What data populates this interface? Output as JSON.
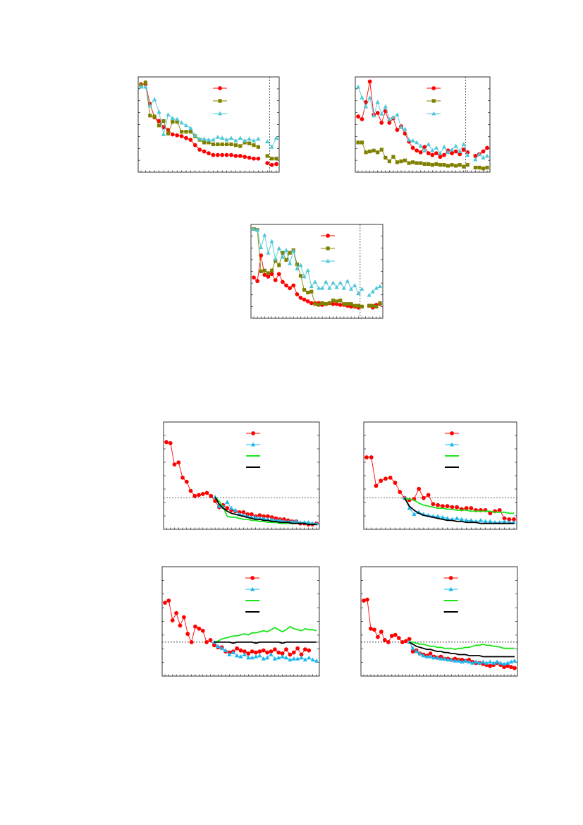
{
  "colors": {
    "red": "#ff0000",
    "olive": "#808000",
    "cyan": "#4cc8d8",
    "blue": "#19b8f0",
    "green": "#19e619",
    "black": "#000000"
  },
  "chart_data": [
    {
      "id": "top-1",
      "type": "line",
      "ylim": [
        0,
        100
      ],
      "split_at": 31,
      "grid": false,
      "legend": "top-right",
      "series": [
        {
          "marker": "circle",
          "color": "red",
          "values": [
            95,
            95,
            73,
            58,
            54,
            47,
            44,
            39,
            38,
            37,
            35,
            33,
            27,
            22,
            20,
            18,
            16,
            16,
            16,
            16,
            16,
            15,
            15,
            14,
            13,
            12,
            12,
            null,
            7,
            5,
            6
          ]
        },
        {
          "marker": "square",
          "color": "olive",
          "values": [
            94,
            97,
            60,
            59,
            49,
            54,
            40,
            53,
            53,
            42,
            42,
            42,
            37,
            33,
            30,
            30,
            28,
            28,
            28,
            28,
            28,
            27,
            26,
            30,
            29,
            27,
            25,
            null,
            15,
            12,
            12
          ]
        },
        {
          "marker": "triangle",
          "color": "cyan",
          "values": [
            92,
            92,
            71,
            78,
            64,
            39,
            61,
            57,
            56,
            52,
            49,
            46,
            38,
            34,
            34,
            33,
            33,
            36,
            35,
            33,
            35,
            32,
            35,
            32,
            34,
            32,
            34,
            null,
            31,
            25,
            35
          ]
        }
      ]
    },
    {
      "id": "top-2",
      "type": "line",
      "ylim": [
        0,
        100
      ],
      "split_at": 30,
      "grid": false,
      "legend": "top-right",
      "series": [
        {
          "marker": "circle",
          "color": "red",
          "values": [
            59,
            56,
            75,
            98,
            61,
            63,
            52,
            65,
            52,
            57,
            44,
            48,
            40,
            31,
            24,
            21,
            19,
            25,
            18,
            16,
            18,
            14,
            16,
            21,
            18,
            20,
            17,
            22,
            19,
            null,
            15,
            17,
            20,
            24
          ]
        },
        {
          "marker": "square",
          "color": "olive",
          "values": [
            30,
            30,
            19,
            20,
            21,
            19,
            22,
            13,
            9,
            14,
            8,
            9,
            10,
            7,
            8,
            7,
            7,
            6,
            6,
            5,
            6,
            5,
            5,
            4,
            5,
            4,
            5,
            3,
            5,
            null,
            2,
            2,
            1,
            2
          ]
        },
        {
          "marker": "triangle",
          "color": "cyan",
          "values": [
            92,
            80,
            70,
            80,
            60,
            75,
            62,
            70,
            56,
            58,
            61,
            47,
            45,
            33,
            32,
            30,
            26,
            21,
            28,
            21,
            24,
            18,
            25,
            19,
            22,
            26,
            20,
            28,
            16,
            null,
            11,
            17,
            13,
            15
          ]
        }
      ]
    },
    {
      "id": "top-3",
      "type": "line",
      "ylim": [
        0,
        100
      ],
      "split_at": 32,
      "grid": false,
      "legend": "top-right",
      "series": [
        {
          "marker": "circle",
          "color": "red",
          "values": [
            43,
            39,
            68,
            46,
            44,
            47,
            40,
            47,
            38,
            34,
            31,
            34,
            24,
            20,
            18,
            16,
            14,
            14,
            14,
            12,
            13,
            14,
            13,
            13,
            12,
            12,
            11,
            10,
            10,
            9,
            10,
            null,
            11,
            9,
            12,
            13
          ]
        },
        {
          "marker": "square",
          "color": "olive",
          "values": [
            98,
            97,
            50,
            51,
            48,
            51,
            62,
            57,
            71,
            63,
            71,
            74,
            58,
            45,
            29,
            26,
            27,
            13,
            12,
            14,
            13,
            14,
            17,
            16,
            17,
            13,
            13,
            13,
            11,
            11,
            10,
            null,
            11,
            11,
            10,
            14
          ]
        },
        {
          "marker": "triangle",
          "color": "cyan",
          "values": [
            98,
            97,
            77,
            91,
            71,
            84,
            64,
            76,
            66,
            74,
            59,
            73,
            53,
            57,
            44,
            51,
            33,
            38,
            31,
            31,
            38,
            31,
            37,
            32,
            37,
            31,
            39,
            30,
            34,
            25,
            30,
            null,
            23,
            27,
            31,
            33
          ]
        }
      ]
    },
    {
      "id": "bot-1",
      "type": "line",
      "ylim": [
        0,
        100
      ],
      "hline": 28,
      "grid": false,
      "legend": "top-right",
      "series": [
        {
          "marker": "circle",
          "color": "red",
          "x0": 0,
          "values": [
            83,
            82,
            61,
            63,
            48,
            44,
            35,
            30,
            31,
            32,
            33,
            30,
            25,
            19,
            21,
            18,
            16,
            15,
            14,
            14,
            12,
            12,
            10,
            11,
            10,
            10,
            9,
            8,
            7,
            7,
            6,
            5,
            5,
            3,
            3,
            2,
            2,
            3
          ]
        },
        {
          "marker": "triangle",
          "color": "blue",
          "x0": 12,
          "values": [
            29,
            20,
            19,
            24,
            18,
            16,
            12,
            11,
            10,
            9,
            9,
            8,
            8,
            7,
            7,
            6,
            6,
            5,
            5,
            5,
            5,
            4,
            4,
            4,
            3,
            3
          ]
        },
        {
          "marker": "none",
          "color": "green",
          "x0": 12,
          "values": [
            29,
            25,
            19,
            10,
            9,
            9,
            8,
            7,
            7,
            6,
            6,
            5,
            5,
            4,
            4,
            4,
            3,
            3,
            3,
            3,
            3,
            3,
            3,
            2,
            2,
            2
          ]
        },
        {
          "marker": "none",
          "color": "black",
          "x0": 12,
          "values": [
            29,
            22,
            18,
            15,
            13,
            12,
            11,
            10,
            9,
            8,
            7,
            7,
            6,
            6,
            5,
            5,
            4,
            4,
            4,
            3,
            3,
            3,
            3,
            2,
            2,
            2
          ]
        }
      ]
    },
    {
      "id": "bot-2",
      "type": "line",
      "ylim": [
        0,
        100
      ],
      "hline": 28,
      "grid": false,
      "legend": "top-right",
      "series": [
        {
          "marker": "circle",
          "color": "red",
          "x0": 0,
          "values": [
            68,
            68,
            40,
            45,
            47,
            48,
            43,
            34,
            28,
            26,
            27,
            37,
            28,
            31,
            22,
            21,
            20,
            20,
            19,
            19,
            17,
            18,
            18,
            16,
            16,
            16,
            13,
            15,
            16,
            8,
            7,
            7
          ]
        },
        {
          "marker": "triangle",
          "color": "blue",
          "x0": 8,
          "values": [
            28,
            18,
            12,
            14,
            12,
            11,
            10,
            10,
            9,
            8,
            7,
            8,
            7,
            6,
            6,
            5,
            6,
            5,
            5,
            4,
            4,
            5,
            4,
            4
          ]
        },
        {
          "marker": "none",
          "color": "green",
          "x0": 8,
          "values": [
            28,
            27,
            26,
            23,
            21,
            20,
            19,
            18,
            18,
            17,
            17,
            16,
            16,
            16,
            15,
            15,
            15,
            15,
            15,
            14,
            14,
            14,
            13,
            13
          ]
        },
        {
          "marker": "none",
          "color": "black",
          "x0": 8,
          "values": [
            28,
            20,
            16,
            13,
            11,
            10,
            9,
            8,
            7,
            6,
            6,
            5,
            5,
            4,
            4,
            4,
            3,
            3,
            3,
            3,
            3,
            3,
            3,
            3
          ]
        }
      ]
    },
    {
      "id": "bot-3",
      "type": "line",
      "ylim": [
        0,
        100
      ],
      "hline": 30,
      "grid": false,
      "legend": "top-right",
      "series": [
        {
          "marker": "circle",
          "color": "red",
          "x0": 0,
          "values": [
            68,
            70,
            51,
            58,
            46,
            54,
            38,
            30,
            45,
            43,
            41,
            30,
            32,
            27,
            25,
            25,
            21,
            20,
            21,
            24,
            22,
            21,
            19,
            21,
            20,
            21,
            22,
            20,
            21,
            23,
            20,
            19,
            23,
            18,
            20,
            24,
            18,
            23,
            22
          ]
        },
        {
          "marker": "triangle",
          "color": "blue",
          "x0": 13,
          "values": [
            30,
            26,
            24,
            22,
            18,
            20,
            17,
            16,
            18,
            15,
            15,
            16,
            17,
            14,
            15,
            18,
            14,
            15,
            16,
            15,
            13,
            14,
            14,
            15,
            13,
            15,
            13,
            12
          ]
        },
        {
          "marker": "none",
          "color": "green",
          "x0": 13,
          "values": [
            30,
            31,
            33,
            34,
            35,
            36,
            36,
            37,
            38,
            37,
            39,
            39,
            40,
            41,
            40,
            42,
            44,
            42,
            40,
            42,
            45,
            43,
            42,
            41,
            43,
            42,
            42,
            41
          ]
        },
        {
          "marker": "none",
          "color": "black",
          "x0": 13,
          "values": [
            30,
            30,
            30,
            30,
            30,
            29,
            30,
            30,
            30,
            30,
            30,
            29,
            30,
            30,
            30,
            30,
            30,
            30,
            29,
            30,
            30,
            30,
            30,
            30,
            30,
            30,
            30,
            30
          ]
        }
      ]
    },
    {
      "id": "bot-4",
      "type": "line",
      "ylim": [
        0,
        100
      ],
      "hline": 30,
      "grid": false,
      "legend": "top-right",
      "series": [
        {
          "marker": "circle",
          "color": "red",
          "x0": 0,
          "values": [
            70,
            71,
            43,
            42,
            35,
            40,
            32,
            30,
            36,
            37,
            34,
            30,
            31,
            33,
            21,
            22,
            19,
            18,
            17,
            19,
            16,
            15,
            16,
            14,
            14,
            13,
            14,
            13,
            13,
            12,
            13,
            11,
            10,
            10,
            9,
            8,
            7,
            8,
            10,
            8,
            6,
            7,
            6,
            5
          ]
        },
        {
          "marker": "triangle",
          "color": "blue",
          "x0": 13,
          "values": [
            30,
            24,
            21,
            19,
            17,
            16,
            16,
            15,
            15,
            14,
            14,
            13,
            13,
            12,
            12,
            11,
            12,
            11,
            10,
            11,
            10,
            11,
            10,
            11,
            10,
            11,
            10,
            9,
            10,
            11,
            12
          ]
        },
        {
          "marker": "none",
          "color": "green",
          "x0": 13,
          "values": [
            30,
            30,
            29,
            28,
            28,
            27,
            26,
            26,
            25,
            25,
            24,
            24,
            24,
            23,
            24,
            24,
            25,
            25,
            26,
            27,
            27,
            28,
            27,
            27,
            26,
            26,
            25,
            24,
            24,
            24,
            24
          ]
        },
        {
          "marker": "none",
          "color": "black",
          "x0": 13,
          "values": [
            30,
            28,
            26,
            25,
            24,
            23,
            23,
            22,
            21,
            21,
            20,
            20,
            19,
            19,
            18,
            18,
            18,
            17,
            17,
            17,
            17,
            16,
            16,
            16,
            16,
            16,
            16,
            16,
            16,
            16,
            16
          ]
        }
      ]
    }
  ]
}
